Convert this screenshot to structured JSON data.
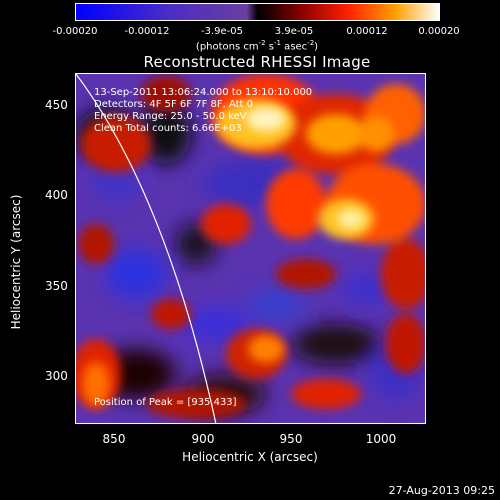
{
  "colorbar": {
    "ticks": [
      "-0.00020",
      "-0.00012",
      "-3.9e-05",
      "3.9e-05",
      "0.00012",
      "0.00020"
    ],
    "units_prefix": "(photons cm",
    "units_exp1": "-2",
    "units_mid": " s",
    "units_exp2": "-1",
    "units_mid2": " asec",
    "units_exp3": "-2",
    "units_suffix": ")"
  },
  "title": "Reconstructed RHESSI Image",
  "annotations": {
    "time_range": "13-Sep-2011 13:06:24.000 to 13:10:10.000",
    "detectors": "Detectors: 4F 5F 6F 7F 8F, Att 0",
    "energy_range": "Energy Range: 25.0 - 50.0 keV",
    "clean_counts": "Clean    Total counts: 6.66E+03",
    "peak_position": "Position of Peak = [935,433]"
  },
  "axes": {
    "xlabel": "Heliocentric X (arcsec)",
    "ylabel": "Heliocentric Y (arcsec)",
    "xticks": [
      "850",
      "900",
      "950",
      "1000"
    ],
    "yticks": [
      "450",
      "400",
      "350",
      "300"
    ]
  },
  "footer_timestamp": "27-Aug-2013 09:25"
}
